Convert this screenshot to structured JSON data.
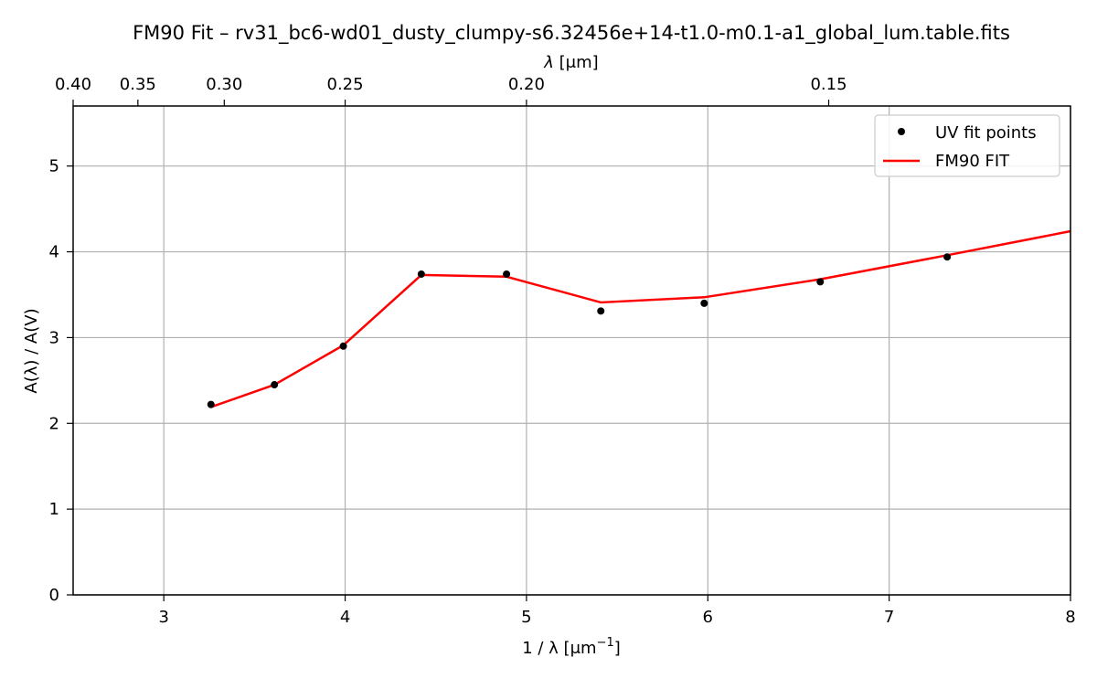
{
  "chart_data": {
    "type": "line",
    "title": "FM90 Fit – rv31_bc6-wd01_dusty_clumpy-s6.32456e+14-t1.0-m0.1-a1_global_lum.table.fits",
    "xlabel": "1 / λ [μm",
    "xlabel_sup": "−1",
    "xlabel_tail": "]",
    "ylabel": "A(λ) / A(V)",
    "top_xlabel_sym": "λ",
    "top_xlabel_unit": " [μm]",
    "xlim": [
      2.5,
      8.0
    ],
    "ylim": [
      0,
      5.7
    ],
    "grid": true,
    "legend_position": "top-right",
    "xticks": [
      3,
      4,
      5,
      6,
      7,
      8
    ],
    "xtick_labels": [
      "3",
      "4",
      "5",
      "6",
      "7",
      "8"
    ],
    "yticks": [
      0,
      1,
      2,
      3,
      4,
      5
    ],
    "ytick_labels": [
      "0",
      "1",
      "2",
      "3",
      "4",
      "5"
    ],
    "top_xticks_wavelength": [
      0.4,
      0.35,
      0.3,
      0.25,
      0.2,
      0.15
    ],
    "top_xtick_labels": [
      "0.40",
      "0.35",
      "0.30",
      "0.25",
      "0.20",
      "0.15"
    ],
    "series": [
      {
        "name": "UV fit points",
        "kind": "scatter",
        "color": "#000000",
        "x": [
          3.26,
          3.61,
          3.99,
          4.42,
          4.89,
          5.41,
          5.98,
          6.62,
          7.32
        ],
        "y": [
          2.22,
          2.45,
          2.9,
          3.74,
          3.74,
          3.31,
          3.4,
          3.65,
          3.94
        ]
      },
      {
        "name": "FM90 FIT",
        "kind": "line",
        "color": "#ff0000",
        "x": [
          3.26,
          3.61,
          3.99,
          4.42,
          4.89,
          5.41,
          5.98,
          6.62,
          7.32,
          8.0
        ],
        "y": [
          2.19,
          2.45,
          2.91,
          3.73,
          3.71,
          3.41,
          3.47,
          3.68,
          3.96,
          4.24
        ]
      }
    ]
  }
}
